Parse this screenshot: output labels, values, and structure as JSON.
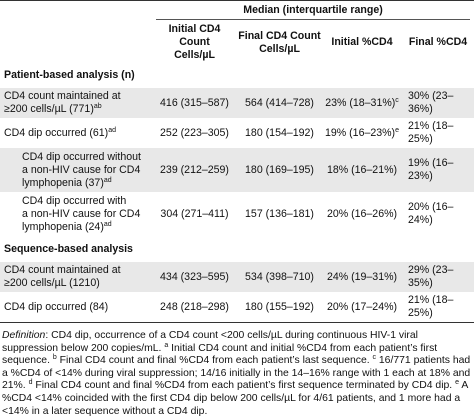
{
  "header": {
    "group_label": "Median (interquartile range)",
    "columns": [
      "Initial CD4 Count Cells/µL",
      "Final CD4 Count Cells/µL",
      "Initial %CD4",
      "Final %CD4"
    ],
    "col_line1": [
      "Initial CD4 Count",
      "Final CD4 Count",
      "Initial %CD4",
      "Final %CD4"
    ],
    "col_line2": [
      "Cells/µL",
      "Cells/µL",
      "",
      ""
    ]
  },
  "sections": [
    {
      "title": "Patient-based analysis (n)",
      "rows": [
        {
          "label_lines": [
            "CD4 count maintained at",
            "≥200 cells/µL (771)"
          ],
          "label_sup": "ab",
          "values": [
            "416 (315–587)",
            "564 (414–728)",
            "23% (18–31%)",
            "30% (23–36%)"
          ],
          "value_sups": [
            "",
            "",
            "c",
            ""
          ]
        },
        {
          "label_lines": [
            "CD4 dip occurred (61)"
          ],
          "label_sup": "ad",
          "values": [
            "252 (223–305)",
            "180 (154–192)",
            "19% (16–23%)",
            "21% (18–25%)"
          ],
          "value_sups": [
            "",
            "",
            "e",
            ""
          ]
        },
        {
          "label_lines": [
            "CD4 dip occurred without",
            "a non-HIV cause for CD4",
            "lymphopenia (37)"
          ],
          "label_sup": "ad",
          "values": [
            "239 (212–259)",
            "180 (169–195)",
            "18% (16–21%)",
            "19% (16–23%)"
          ],
          "value_sups": [
            "",
            "",
            "",
            ""
          ]
        },
        {
          "label_lines": [
            "CD4 dip occurred with",
            "a non-HIV cause for CD4",
            "lymphopenia (24)"
          ],
          "label_sup": "ad",
          "values": [
            "304 (271–411)",
            "157 (136–181)",
            "20% (16–26%)",
            "20% (16–24%)"
          ],
          "value_sups": [
            "",
            "",
            "",
            ""
          ]
        }
      ]
    },
    {
      "title": "Sequence-based analysis",
      "rows": [
        {
          "label_lines": [
            "CD4 count maintained at",
            "≥200 cells/µL (1210)"
          ],
          "label_sup": "",
          "values": [
            "434 (323–595)",
            "534 (398–710)",
            "24% (19–31%)",
            "29% (23–35%)"
          ],
          "value_sups": [
            "",
            "",
            "",
            ""
          ]
        },
        {
          "label_lines": [
            "CD4 dip occurred (84)"
          ],
          "label_sup": "",
          "values": [
            "248 (218–298)",
            "180 (155–192)",
            "20% (17–24%)",
            "21% (18–25%)"
          ],
          "value_sups": [
            "",
            "",
            "",
            ""
          ]
        }
      ]
    }
  ],
  "footnote": {
    "definition_label": "Definition",
    "lines": [
      ": CD4 dip, occurrence of a CD4 count <200 cells/µL during continuous HIV-1 viral suppression",
      "below 200 copies/mL. ",
      "Initial CD4 count and initial %CD4 from each patient’s first sequence. ",
      "Final CD4 count",
      "and final %CD4 from each patient’s last sequence. ",
      "16/771 patients had a %CD4 of <14% during",
      "viral suppression; 14/16 initially in the 14–16% range with 1 each at 18% and 21%. ",
      "Final CD4 count and",
      "final %CD4 from each patient’s first sequence terminated by CD4 dip. ",
      "A %CD4 <14% coincided with the",
      "first CD4 dip below 200 cells/µL for 4/61 patients, and 1 more had a <14% in a later sequence without a",
      "CD4 dip."
    ],
    "sups": [
      "a",
      "b",
      "c",
      "d",
      "e"
    ]
  }
}
